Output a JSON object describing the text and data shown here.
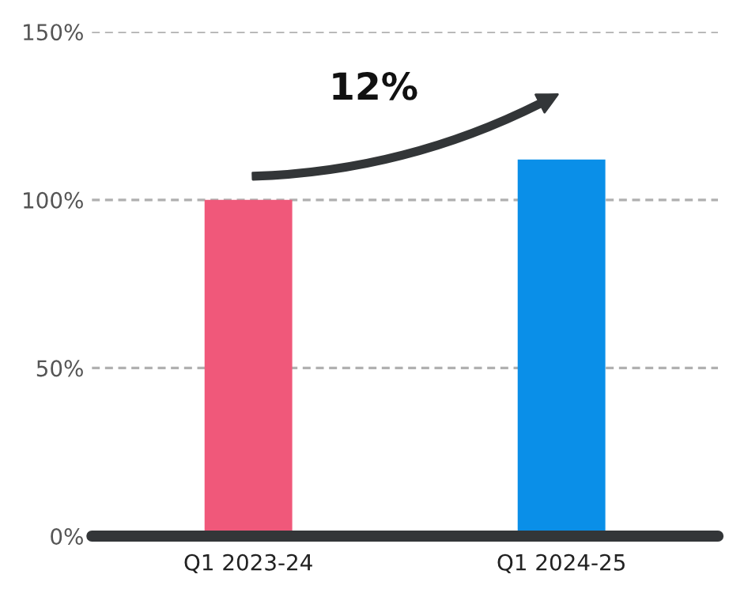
{
  "chart_data": {
    "type": "bar",
    "categories": [
      "Q1 2023-24",
      "Q1 2024-25"
    ],
    "values": [
      100,
      112
    ],
    "colors": [
      "#f0587a",
      "#0a8fe8"
    ],
    "ylim": [
      0,
      150
    ],
    "yticks": [
      {
        "value": 0,
        "label": "0%"
      },
      {
        "value": 50,
        "label": "50%"
      },
      {
        "value": 100,
        "label": "100%"
      },
      {
        "value": 150,
        "label": "150%"
      }
    ],
    "grid": "y",
    "annotations": [
      "12%"
    ]
  }
}
